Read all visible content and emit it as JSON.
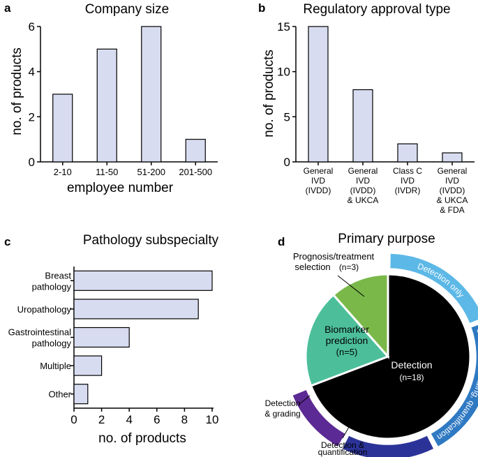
{
  "colors": {
    "bar_fill": "#d8dcf0",
    "axis": "#000000",
    "detection": "#000000",
    "detection_only": "#5cb8e6",
    "detection_grading_quant": "#2f79c2",
    "detection_quant": "#2c3398",
    "detection_grading": "#5c2a94",
    "biomarker": "#4cbf9a",
    "prognosis": "#7ab84a"
  },
  "chart_data": [
    {
      "panel": "a",
      "type": "bar",
      "title": "Company size",
      "xlabel": "employee number",
      "ylabel": "no. of products",
      "categories": [
        "2-10",
        "11-50",
        "51-200",
        "201-500"
      ],
      "values": [
        3,
        5,
        6,
        1
      ],
      "ylim": [
        0,
        6
      ],
      "yticks": [
        "0",
        "2",
        "4",
        "6"
      ],
      "grid": false
    },
    {
      "panel": "b",
      "type": "bar",
      "title": "Regulatory approval type",
      "xlabel": "",
      "ylabel": "no. of products",
      "categories": [
        [
          "General",
          "IVD",
          "(IVDD)"
        ],
        [
          "General",
          "IVD",
          "(IVDD)",
          "& UKCA"
        ],
        [
          "Class C",
          "IVD",
          "(IVDR)"
        ],
        [
          "General",
          "IVD",
          "(IVDD)",
          "& UKCA",
          "& FDA"
        ]
      ],
      "values": [
        15,
        8,
        2,
        1
      ],
      "ylim": [
        0,
        15
      ],
      "yticks": [
        "0",
        "5",
        "10",
        "15"
      ],
      "grid": false
    },
    {
      "panel": "c",
      "type": "bar",
      "orientation": "horizontal",
      "title": "Pathology subspecialty",
      "xlabel": "no. of products",
      "ylabel": "",
      "categories": [
        [
          "Breast",
          "pathology"
        ],
        [
          "Uropathology"
        ],
        [
          "Gastrointestinal",
          "pathology"
        ],
        [
          "Multiple"
        ],
        [
          "Other"
        ]
      ],
      "values": [
        10,
        9,
        4,
        2,
        1
      ],
      "xlim": [
        0,
        10
      ],
      "xticks": [
        "0",
        "2",
        "4",
        "6",
        "8",
        "10"
      ],
      "grid": false
    },
    {
      "panel": "d",
      "type": "pie",
      "title": "Primary purpose",
      "slices": [
        {
          "label": [
            "Detection"
          ],
          "count_label": "(n=18)",
          "value": 18,
          "color_key": "detection"
        },
        {
          "label": [
            "Biomarker",
            "prediction"
          ],
          "count_label": "(n=5)",
          "value": 5,
          "color_key": "biomarker"
        },
        {
          "label": [
            "Prognosis/treatment",
            "selection"
          ],
          "count_label": "(n=3)",
          "value": 3,
          "color_key": "prognosis"
        }
      ],
      "outer_ring": [
        {
          "label": "Detection only",
          "value": 5,
          "color_key": "detection_only"
        },
        {
          "label": "Detection, grading, quantification",
          "value": 6,
          "color_key": "detection_grading_quant"
        },
        {
          "label": [
            "Detection &",
            "quantification"
          ],
          "value": 4,
          "color_key": "detection_quant"
        },
        {
          "label": [
            "Detection",
            "& grading"
          ],
          "value": 3,
          "color_key": "detection_grading"
        }
      ]
    }
  ]
}
